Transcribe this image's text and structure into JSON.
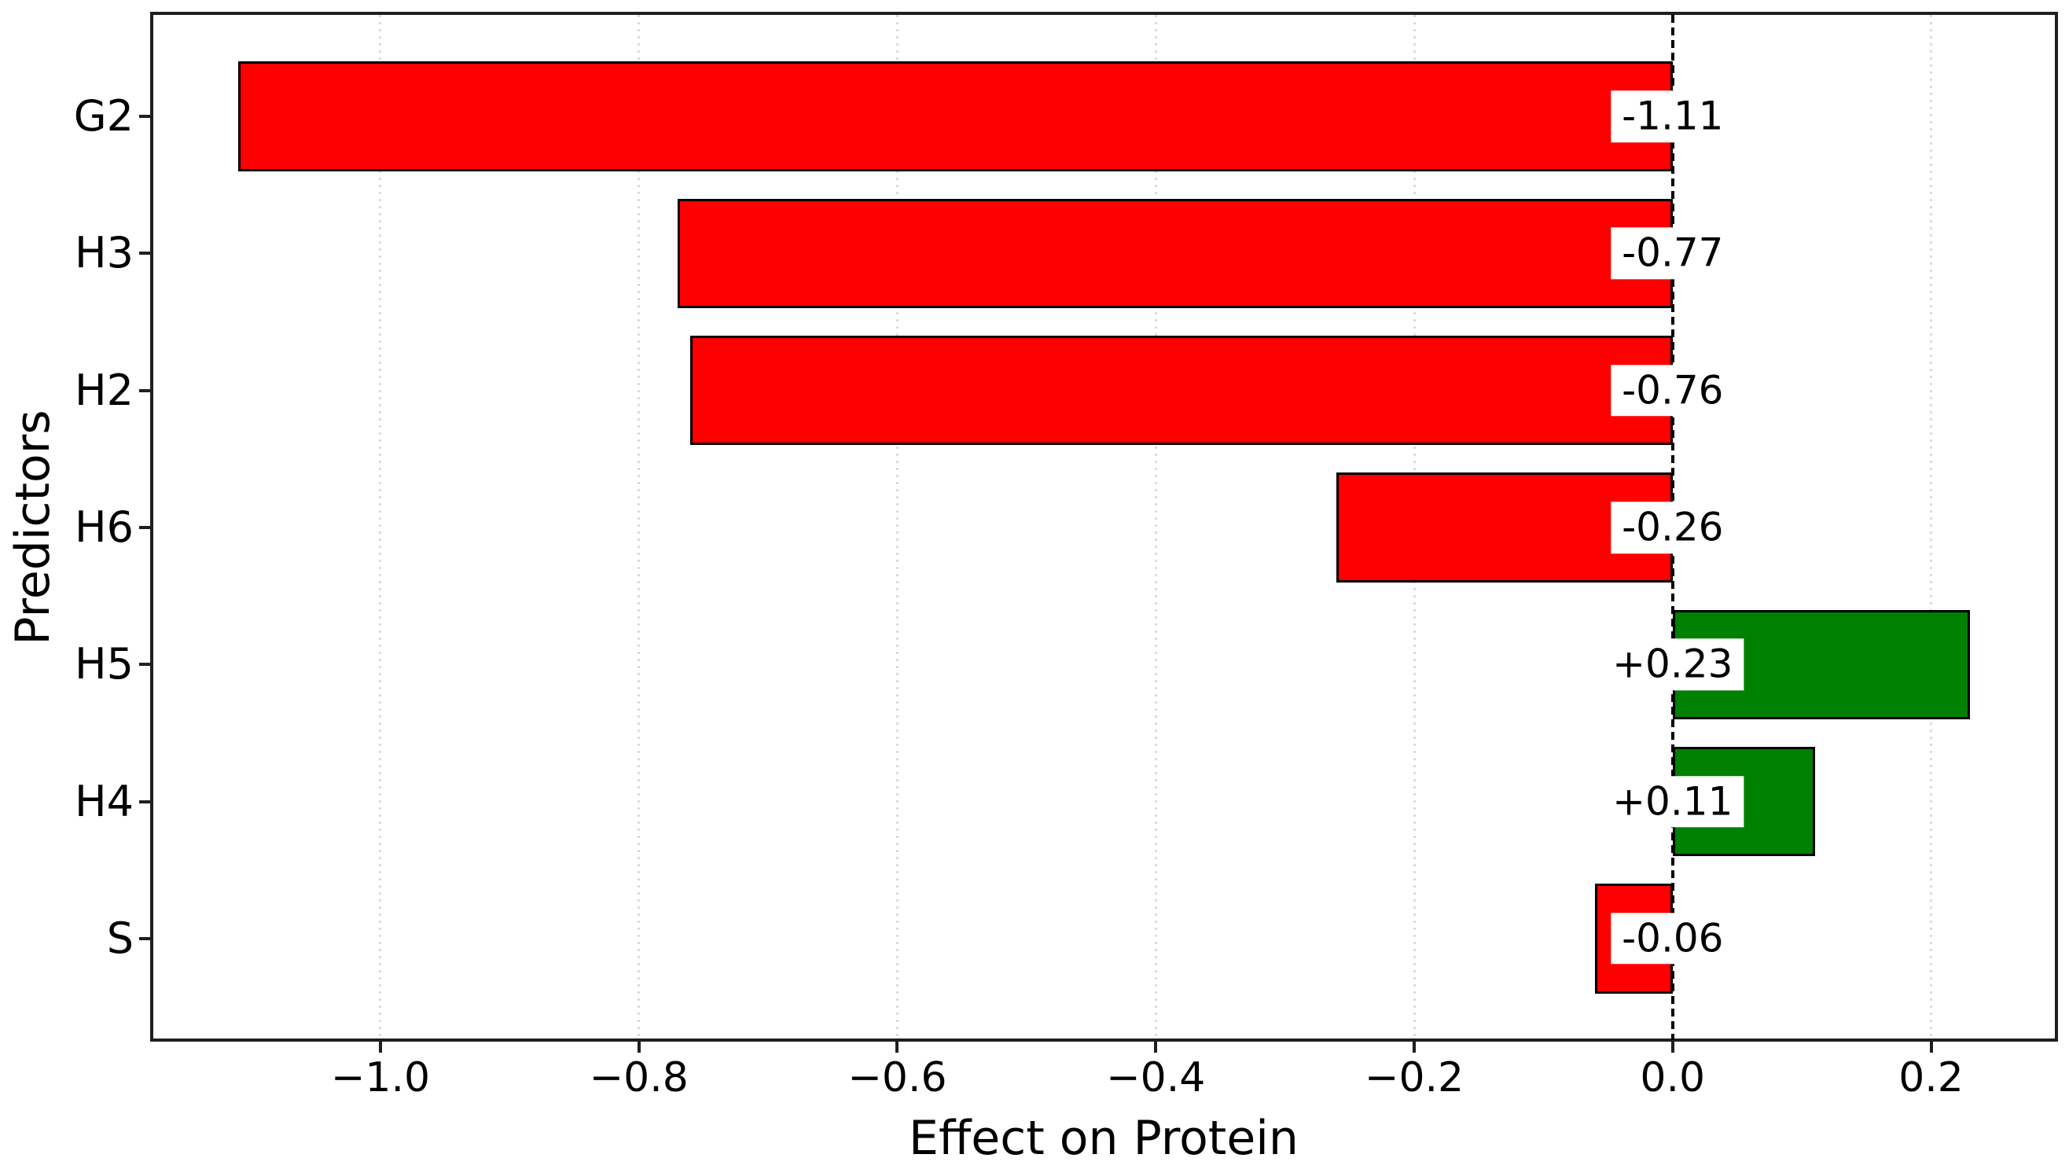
{
  "chart_data": {
    "type": "bar",
    "orientation": "horizontal",
    "title": "",
    "xlabel": "Effect on Protein",
    "ylabel": "Predictors",
    "categories": [
      "G2",
      "H3",
      "H2",
      "H6",
      "H5",
      "H4",
      "S"
    ],
    "values": [
      -1.11,
      -0.77,
      -0.76,
      -0.26,
      0.23,
      0.11,
      -0.06
    ],
    "value_labels": [
      "-1.11",
      "-0.77",
      "-0.76",
      "-0.26",
      "+0.23",
      "+0.11",
      "-0.06"
    ],
    "xlim": [
      -1.177,
      0.297
    ],
    "xticks": [
      -1.0,
      -0.8,
      -0.6,
      -0.4,
      -0.2,
      0.0,
      0.2
    ],
    "xtick_labels": [
      "−1.0",
      "−0.8",
      "−0.6",
      "−0.4",
      "−0.2",
      "0.0",
      "0.2"
    ],
    "bar_height_fraction": 0.8,
    "grid": {
      "axis": "x",
      "style": "dotted"
    },
    "zero_line_style": "dashed",
    "legend": "none",
    "colors": {
      "positive_bar": "#008000",
      "negative_bar": "#ff0000",
      "bar_edge": "#000000",
      "grid_line": "#dcdcdc",
      "zero_line": "#000000",
      "value_label_bg": "#ffffff",
      "text": "#000000"
    }
  }
}
